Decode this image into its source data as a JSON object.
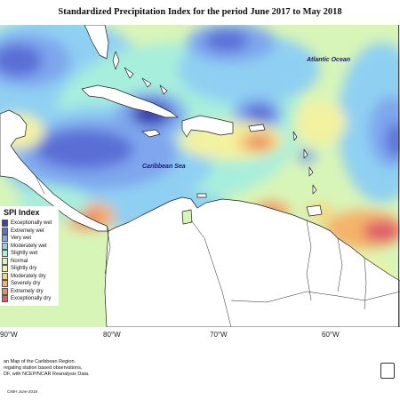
{
  "title": "Standardized Precipitation Index for the period June 2017 to May 2018",
  "ocean_labels": {
    "atlantic": "Atlantic Ocean",
    "caribbean": "Caribbean Sea"
  },
  "longitude_labels": [
    "90°W",
    "80°W",
    "70°W",
    "60°W"
  ],
  "legend": {
    "title": "SPI Index",
    "items": [
      {
        "label": "Exceptionally wet",
        "color": "#3e3fb0"
      },
      {
        "label": "Extremely wet",
        "color": "#5a6ed6"
      },
      {
        "label": "Very wet",
        "color": "#7fa6ee"
      },
      {
        "label": "Moderately wet",
        "color": "#8fd0f2"
      },
      {
        "label": "Slightly wet",
        "color": "#a8eedc"
      },
      {
        "label": "Normal",
        "color": "#d8f5b8"
      },
      {
        "label": "Slightly dry",
        "color": "#f2f2a0"
      },
      {
        "label": "Moderately dry",
        "color": "#f7d77a"
      },
      {
        "label": "Severely dry",
        "color": "#f5b36a"
      },
      {
        "label": "Extremely dry",
        "color": "#ee8a6a"
      },
      {
        "label": "Exceptionally dry",
        "color": "#e05a6a"
      }
    ]
  },
  "caption_lines": [
    "an Map of the Caribbean Region.",
    "regating station based observations,",
    "DF, with NCEP/NCAR Reanalysis Data."
  ],
  "credit": "CIMH June-2018"
}
